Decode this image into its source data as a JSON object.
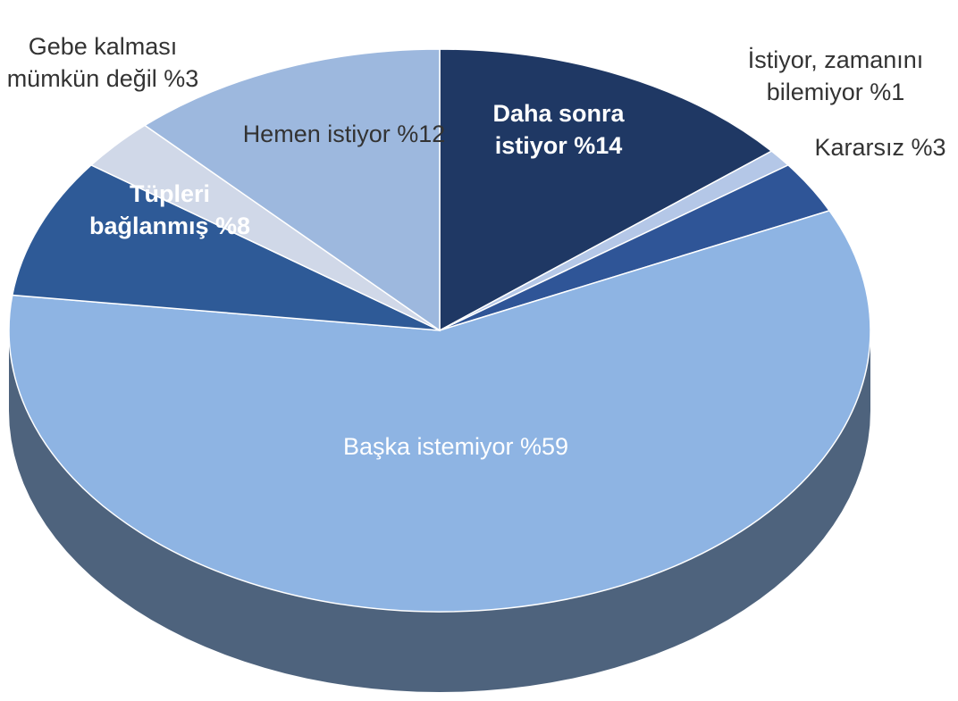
{
  "chart_data": {
    "type": "pie",
    "categories": [
      "Daha sonra istiyor",
      "İstiyor, zamanını bilemiyor",
      "Kararsız",
      "Başka istemiyor",
      "Tüpleri bağlanmış",
      "Gebe kalması mümkün değil",
      "Hemen istiyor"
    ],
    "values": [
      14,
      1,
      3,
      59,
      8,
      3,
      12
    ],
    "value_labels": [
      "%14",
      "%1",
      "%3",
      "%59",
      "%8",
      "%3",
      "%12"
    ],
    "colors": [
      "#1f3864",
      "#b4c7e7",
      "#2f5597",
      "#8eb4e3",
      "#2e5a97",
      "#d0d8e8",
      "#9db8de"
    ]
  }
}
